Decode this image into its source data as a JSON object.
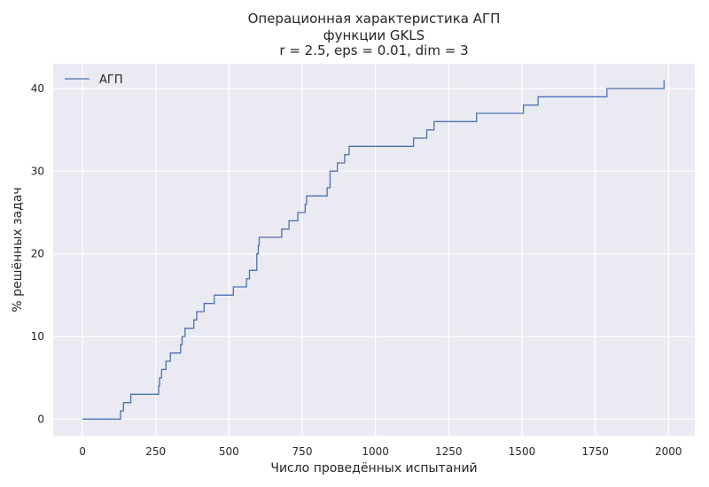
{
  "chart_data": {
    "type": "line",
    "step": true,
    "title_lines": [
      "Операционная характеристика АГП",
      "функции GKLS",
      "r = 2.5, eps = 0.01, dim = 3"
    ],
    "xlabel": "Число проведённых испытаний",
    "ylabel": "% решённых задач",
    "xlim": [
      -100,
      2090
    ],
    "ylim": [
      -2,
      43
    ],
    "xticks": [
      0,
      250,
      500,
      750,
      1000,
      1250,
      1500,
      1750,
      2000
    ],
    "yticks": [
      0,
      10,
      20,
      30,
      40
    ],
    "grid": true,
    "legend_position": "top-left",
    "colors": {
      "background": "#eaeaf2",
      "grid": "#ffffff",
      "line": "#4c72b0",
      "text": "#262626"
    },
    "series": [
      {
        "name": "АГП",
        "points": [
          [
            0,
            0
          ],
          [
            130,
            0
          ],
          [
            130,
            1
          ],
          [
            140,
            1
          ],
          [
            140,
            2
          ],
          [
            165,
            2
          ],
          [
            165,
            3
          ],
          [
            260,
            3
          ],
          [
            260,
            4
          ],
          [
            263,
            4
          ],
          [
            263,
            5
          ],
          [
            270,
            5
          ],
          [
            270,
            6
          ],
          [
            285,
            6
          ],
          [
            285,
            7
          ],
          [
            300,
            7
          ],
          [
            300,
            8
          ],
          [
            335,
            8
          ],
          [
            335,
            9
          ],
          [
            340,
            9
          ],
          [
            340,
            10
          ],
          [
            350,
            10
          ],
          [
            350,
            11
          ],
          [
            380,
            11
          ],
          [
            380,
            12
          ],
          [
            390,
            12
          ],
          [
            390,
            13
          ],
          [
            415,
            13
          ],
          [
            415,
            14
          ],
          [
            450,
            14
          ],
          [
            450,
            15
          ],
          [
            515,
            15
          ],
          [
            515,
            16
          ],
          [
            560,
            16
          ],
          [
            560,
            17
          ],
          [
            570,
            17
          ],
          [
            570,
            18
          ],
          [
            595,
            18
          ],
          [
            595,
            20
          ],
          [
            600,
            20
          ],
          [
            600,
            21
          ],
          [
            603,
            21
          ],
          [
            603,
            22
          ],
          [
            680,
            22
          ],
          [
            680,
            23
          ],
          [
            705,
            23
          ],
          [
            705,
            24
          ],
          [
            735,
            24
          ],
          [
            735,
            25
          ],
          [
            760,
            25
          ],
          [
            760,
            26
          ],
          [
            765,
            26
          ],
          [
            765,
            27
          ],
          [
            835,
            27
          ],
          [
            835,
            28
          ],
          [
            845,
            28
          ],
          [
            845,
            30
          ],
          [
            870,
            30
          ],
          [
            870,
            31
          ],
          [
            895,
            31
          ],
          [
            895,
            32
          ],
          [
            910,
            32
          ],
          [
            910,
            33
          ],
          [
            1130,
            33
          ],
          [
            1130,
            34
          ],
          [
            1175,
            34
          ],
          [
            1175,
            35
          ],
          [
            1200,
            35
          ],
          [
            1200,
            36
          ],
          [
            1345,
            36
          ],
          [
            1345,
            37
          ],
          [
            1505,
            37
          ],
          [
            1505,
            38
          ],
          [
            1555,
            38
          ],
          [
            1555,
            39
          ],
          [
            1790,
            39
          ],
          [
            1790,
            40
          ],
          [
            1985,
            40
          ],
          [
            1985,
            41
          ]
        ]
      }
    ]
  }
}
